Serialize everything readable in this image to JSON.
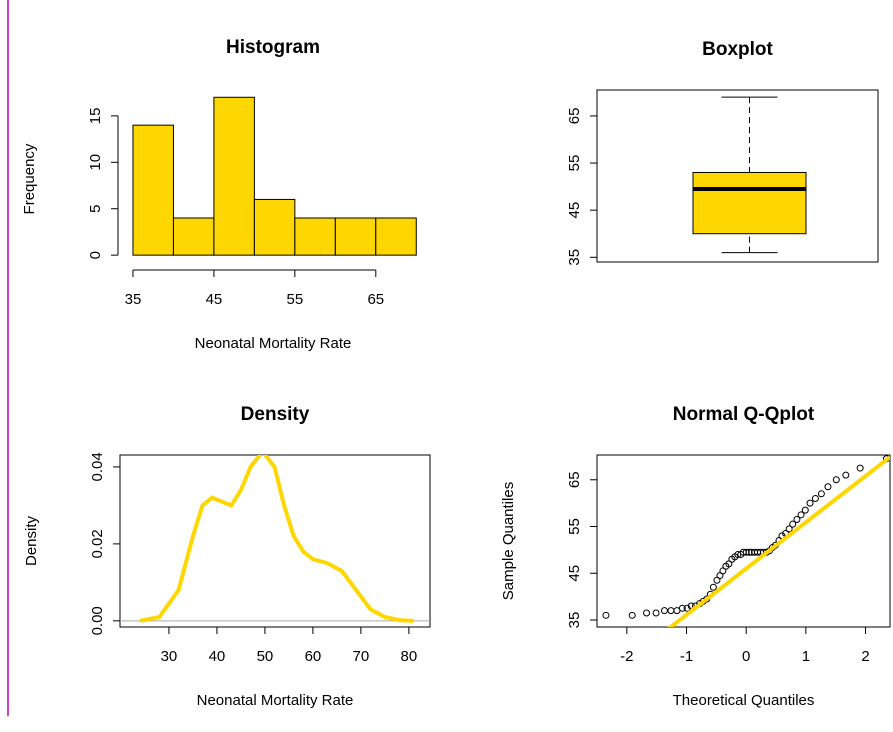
{
  "chart_data": [
    {
      "type": "histogram",
      "title": "Histogram",
      "xlabel": "Neonatal Mortality Rate",
      "ylabel": "Frequency",
      "bins": [
        35,
        40,
        45,
        50,
        55,
        60,
        65,
        70
      ],
      "counts": [
        14,
        4,
        17,
        6,
        4,
        4,
        4
      ],
      "color": "#ffd700",
      "xlim": [
        33.15,
        71.45
      ],
      "ylim": [
        -1.6,
        18
      ],
      "xticks": [
        35,
        45,
        55,
        65
      ],
      "yticks": [
        0,
        5,
        10,
        15
      ],
      "frame": false
    },
    {
      "type": "box",
      "title": "Boxplot",
      "stats": {
        "min": 36,
        "q1": 40,
        "median": 49.5,
        "q3": 53,
        "max": 69
      },
      "color": "#ffd700",
      "ylim": [
        34,
        70.5
      ],
      "yticks": [
        35,
        45,
        55,
        65
      ],
      "frame": true
    },
    {
      "type": "line",
      "title": "Density",
      "xlabel": "Neonatal Mortality Rate",
      "ylabel": "Density",
      "x": [
        24,
        28,
        32,
        35,
        37,
        39,
        41,
        43,
        45,
        47,
        49.5,
        52,
        54,
        56,
        58,
        60,
        63,
        66,
        69,
        72,
        75,
        78,
        81
      ],
      "y": [
        0,
        0.001,
        0.008,
        0.022,
        0.03,
        0.032,
        0.031,
        0.03,
        0.034,
        0.04,
        0.044,
        0.04,
        0.03,
        0.022,
        0.018,
        0.016,
        0.015,
        0.013,
        0.008,
        0.003,
        0.001,
        0.0002,
        0
      ],
      "color": "#ffd700",
      "xlim": [
        19.8,
        84.4
      ],
      "ylim": [
        -0.0016,
        0.0431
      ],
      "xticks": [
        30,
        40,
        50,
        60,
        70,
        80
      ],
      "yticks": [
        {
          "value": 0,
          "label": "0.00"
        },
        0.02,
        0.04
      ],
      "frame": true
    },
    {
      "type": "scatter",
      "title": "Normal Q-Qplot",
      "xlabel": "Theoretical Quantiles",
      "ylabel": "Sample Quantiles",
      "x": [
        -2.35,
        -1.91,
        -1.67,
        -1.51,
        -1.37,
        -1.26,
        -1.16,
        -1.07,
        -0.99,
        -0.92,
        -0.85,
        -0.78,
        -0.72,
        -0.66,
        -0.6,
        -0.55,
        -0.49,
        -0.44,
        -0.39,
        -0.34,
        -0.29,
        -0.24,
        -0.19,
        -0.14,
        -0.09,
        -0.05,
        0,
        0.05,
        0.09,
        0.14,
        0.19,
        0.24,
        0.29,
        0.34,
        0.39,
        0.44,
        0.49,
        0.55,
        0.6,
        0.66,
        0.72,
        0.78,
        0.85,
        0.92,
        0.99,
        1.07,
        1.16,
        1.26,
        1.37,
        1.51,
        1.67,
        1.91,
        2.35
      ],
      "y": [
        36,
        36,
        36.5,
        36.5,
        37,
        37,
        37,
        37.5,
        37.5,
        38,
        38,
        38.5,
        39,
        39.5,
        40.5,
        42,
        43.5,
        44.5,
        45.5,
        46.5,
        47,
        48,
        48.5,
        49,
        49,
        49.5,
        49.5,
        49.5,
        49.5,
        49.5,
        49.5,
        49.5,
        49.5,
        49.5,
        49.8,
        50.5,
        51,
        52,
        53,
        53.5,
        54.5,
        55.5,
        56.5,
        57.5,
        58.5,
        60,
        61,
        62,
        63.5,
        65,
        66,
        67.5,
        69.5
      ],
      "line": {
        "intercept": 46,
        "slope": 9.9
      },
      "line_color": "#ffd700",
      "xlim": [
        -2.5,
        2.41
      ],
      "ylim": [
        33.5,
        70.3
      ],
      "xticks": [
        -2,
        -1,
        0,
        1,
        2
      ],
      "yticks": [
        35,
        45,
        55,
        65
      ],
      "frame": true
    }
  ]
}
